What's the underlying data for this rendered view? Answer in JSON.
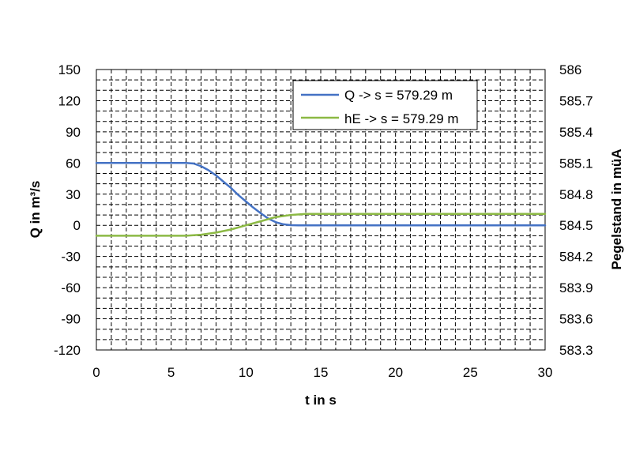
{
  "chart_data": {
    "type": "line",
    "title": "",
    "xlabel": "t in s",
    "ylabel": "Q in m³/s",
    "y2label": "Pegelstand in müA",
    "xlim": [
      0,
      30
    ],
    "ylim": [
      -120,
      150
    ],
    "y2lim": [
      583.3,
      586
    ],
    "x_ticks": [
      "0",
      "5",
      "10",
      "15",
      "20",
      "25",
      "30"
    ],
    "y_ticks": [
      "150",
      "120",
      "90",
      "60",
      "30",
      "0",
      "-30",
      "-60",
      "-90",
      "-120"
    ],
    "y2_ticks": [
      "586",
      "585.7",
      "585.4",
      "585.1",
      "584.8",
      "584.5",
      "584.2",
      "583.9",
      "583.6",
      "583.3"
    ],
    "grid": true,
    "legend_position": "top-right",
    "series": [
      {
        "name": "Q -> s = 579.29 m",
        "axis": "left",
        "color": "#4472C4",
        "x": [
          0,
          6,
          6.5,
          7,
          7.5,
          8,
          8.5,
          9,
          9.5,
          10,
          10.5,
          11,
          11.5,
          12,
          12.5,
          13,
          13.5,
          14,
          30
        ],
        "y": [
          60,
          60,
          59.5,
          57,
          53,
          48,
          42,
          36,
          29,
          23,
          17,
          11.5,
          6.5,
          3,
          1,
          0.2,
          0,
          0,
          0
        ]
      },
      {
        "name": "hE -> s = 579.29 m",
        "axis": "right",
        "color": "#8CB944",
        "x": [
          0,
          6,
          7,
          8,
          9,
          10,
          11,
          12,
          13,
          14,
          30
        ],
        "y": [
          584.4,
          584.4,
          584.41,
          584.43,
          584.46,
          584.5,
          584.54,
          584.58,
          584.6,
          584.61,
          584.61
        ]
      }
    ]
  }
}
